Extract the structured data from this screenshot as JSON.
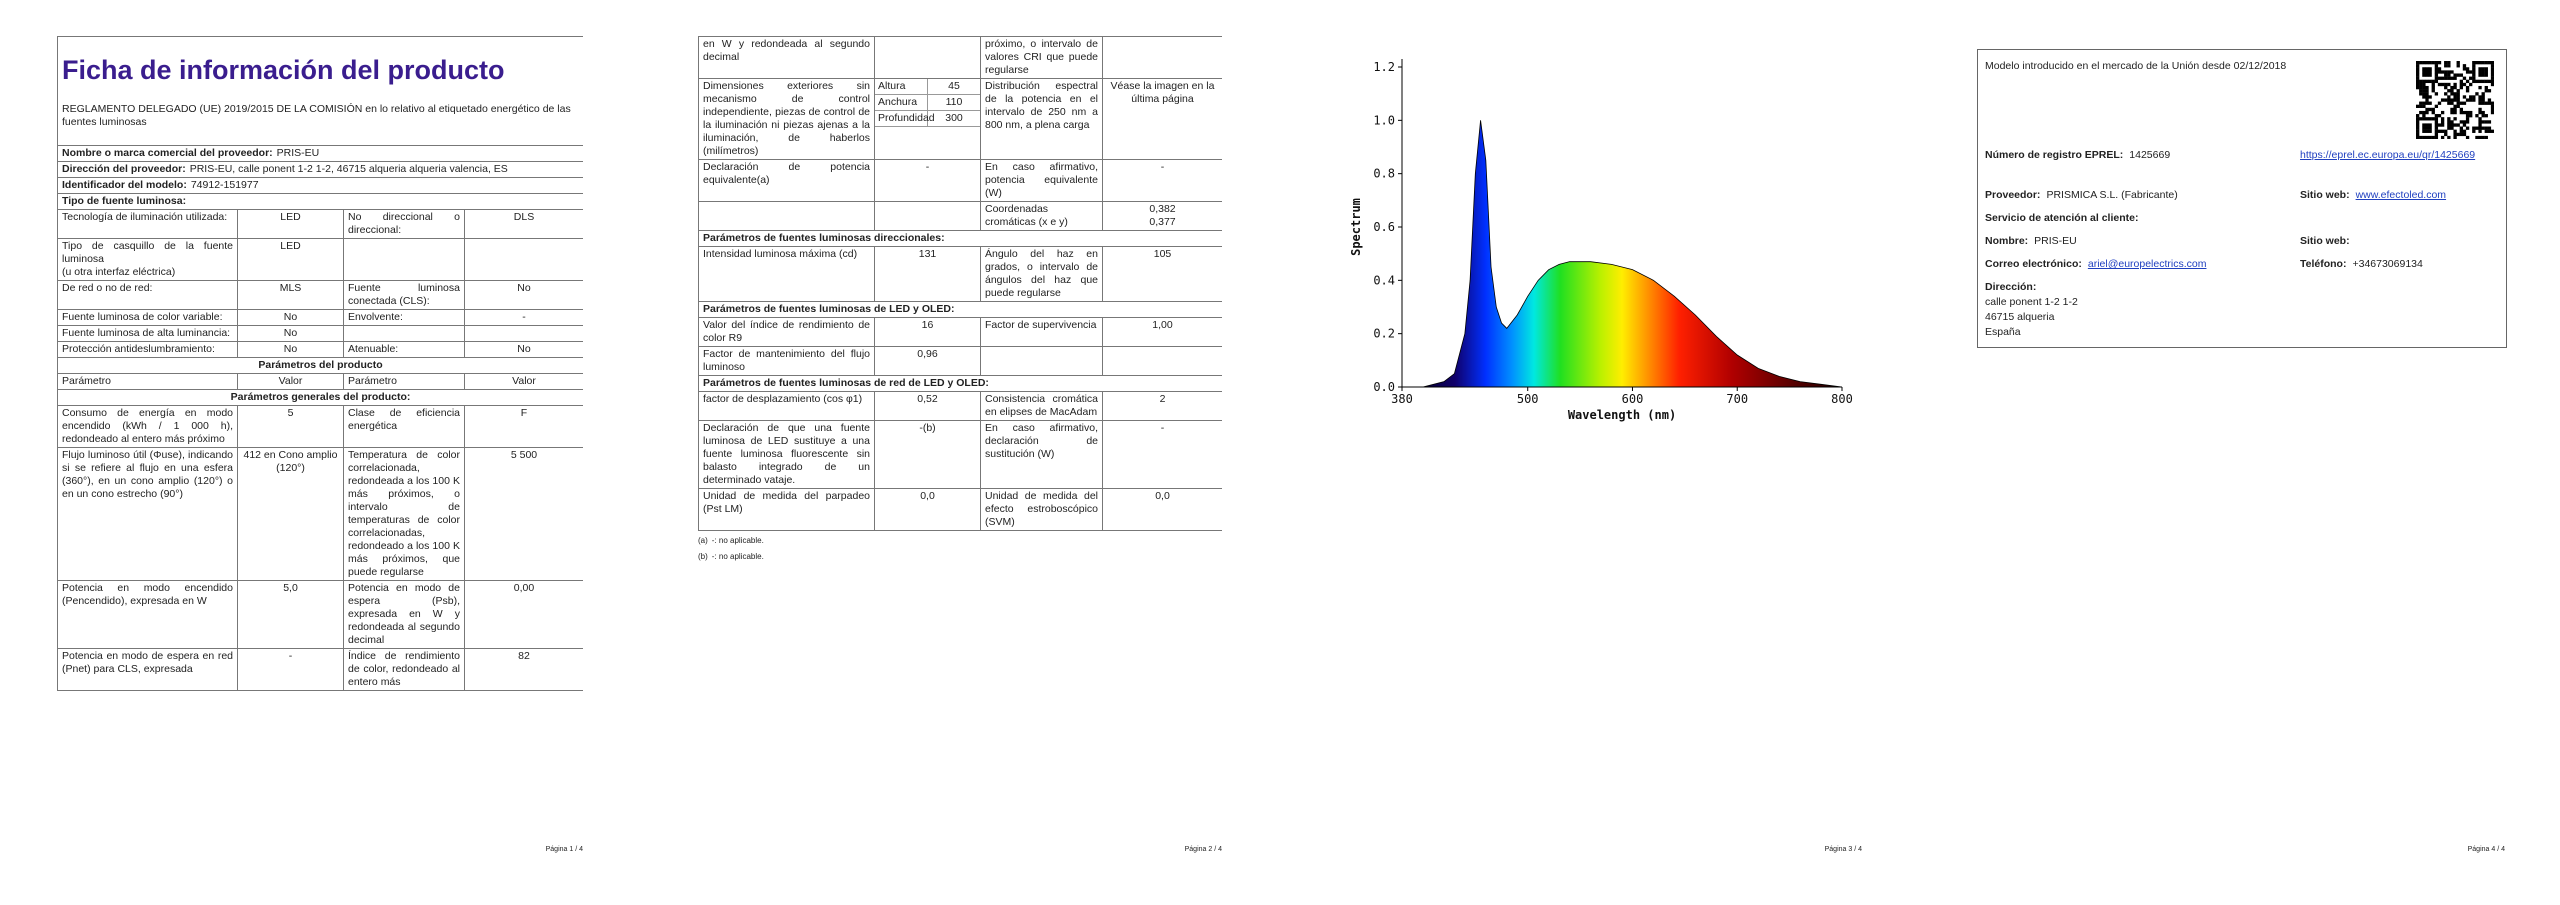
{
  "page1": {
    "title": "Ficha de información del producto",
    "regulation": "REGLAMENTO DELEGADO (UE) 2019/2015 DE LA COMISIÓN en lo relativo al etiquetado energético de las fuentes luminosas",
    "info": [
      [
        "Nombre o marca comercial del proveedor:",
        "PRIS-EU"
      ],
      [
        "Dirección del proveedor:",
        "PRIS-EU, calle ponent 1-2 1-2, 46715 alqueria alqueria valencia, ES"
      ],
      [
        "Identificador del modelo:",
        "74912-151977"
      ],
      [
        "Tipo de fuente luminosa:"
      ]
    ],
    "rows": [
      [
        "Tecnología de iluminación utilizada:",
        "LED",
        "No direccional o direccional:",
        "DLS"
      ],
      [
        "Tipo de casquillo de la fuente luminosa\n(u otra interfaz eléctrica)",
        "LED"
      ],
      [
        "De red o no de red:",
        "MLS",
        "Fuente luminosa conectada (CLS):",
        "No"
      ],
      [
        "Fuente luminosa de color variable:",
        "No",
        "Envolvente:",
        "-"
      ],
      [
        "Fuente luminosa de alta luminancia:",
        "No"
      ],
      [
        "Protección antideslumbramiento:",
        "No",
        "Atenuable:",
        "No"
      ],
      [
        "Parámetros del producto"
      ],
      [
        "Parámetro",
        "Valor",
        "Parámetro",
        "Valor"
      ],
      [
        "Parámetros generales del producto:"
      ],
      [
        "Consumo de energía en modo encendido (kWh / 1 000 h), redondeado al entero más próximo",
        "5",
        "Clase de eficiencia energética",
        "F"
      ],
      [
        "Flujo luminoso útil (Φuse), indicando si se refiere al flujo en una esfera (360°), en un cono amplio (120°) o en un cono estrecho (90°)",
        "412 en Cono amplio (120°)",
        "Temperatura de color correlacionada, redondeada a los 100 K más próximos, o intervalo de temperaturas de color correlacionadas, redondeado a los 100 K más próximos, que puede regularse",
        "5 500"
      ],
      [
        "Potencia en modo encendido (Pencendido), expresada en W",
        "5,0",
        "Potencia en modo de espera (Psb), expresada en W y redondeada al segundo decimal",
        "0,00"
      ],
      [
        "Potencia en modo de espera en red (Pnet) para CLS, expresada",
        "-",
        "Índice de rendimiento de color, redondeado al entero más",
        "82"
      ]
    ]
  },
  "page2": {
    "rows": [
      [
        "en W y redondeada al segundo decimal",
        null,
        "próximo, o intervalo de valores CRI que puede regularse"
      ],
      [
        "Dimensiones exteriores sin mecanismo de control independiente, piezas de control de la iluminación ni piezas ajenas a la iluminación, de haberlos (milímetros)",
        [
          [
            "Altura",
            "45"
          ],
          [
            "Anchura",
            "110"
          ],
          [
            "Profundidad",
            "300"
          ]
        ],
        "Distribución espectral de la potencia en el intervalo de 250 nm a 800 nm, a plena carga",
        "Véase la imagen en la última página"
      ],
      [
        "Declaración de potencia equivalente(a)",
        "-",
        "En caso afirmativo, potencia equivalente (W)",
        "-"
      ],
      [
        null,
        null,
        "Coordenadas cromáticas (x e y)",
        [
          "0,382",
          "0,377"
        ]
      ],
      [
        "Parámetros de fuentes luminosas direccionales:"
      ],
      [
        "Intensidad luminosa máxima (cd)",
        "131",
        "Ángulo del haz en grados, o intervalo de ángulos del haz que puede regularse",
        "105"
      ],
      [
        "Parámetros de fuentes luminosas de LED y OLED:"
      ],
      [
        "Valor del índice de rendimiento de color R9",
        "16",
        "Factor de supervivencia",
        "1,00"
      ],
      [
        "Factor de mantenimiento del flujo luminoso",
        "0,96"
      ],
      [
        "Parámetros de fuentes luminosas de red de LED y OLED:"
      ],
      [
        "factor de desplazamiento (cos φ1)",
        "0,52",
        "Consistencia cromática en elipses de MacAdam",
        "2"
      ],
      [
        "Declaración de que una fuente luminosa de LED sustituye a una fuente luminosa fluorescente sin balasto integrado de un determinado vataje.",
        "-(b)",
        "En caso afirmativo, declaración de sustitución (W)",
        "-"
      ],
      [
        "Unidad de medida del parpadeo (Pst LM)",
        "0,0",
        "Unidad de medida del efecto estroboscópico (SVM)",
        "0,0"
      ]
    ],
    "footnotes": [
      [
        "(a)",
        "-: no aplicable."
      ],
      [
        "(b)",
        "-: no aplicable."
      ]
    ]
  },
  "chart_data": {
    "type": "area",
    "x_label": "Wavelength (nm)",
    "y_label": "Spectrum",
    "x": [
      380,
      400,
      420,
      430,
      440,
      445,
      450,
      455,
      460,
      465,
      470,
      475,
      480,
      490,
      500,
      510,
      520,
      530,
      540,
      560,
      580,
      600,
      620,
      640,
      660,
      680,
      700,
      720,
      740,
      760,
      780,
      800
    ],
    "values": [
      0.0,
      0.0,
      0.02,
      0.05,
      0.2,
      0.4,
      0.8,
      1.0,
      0.85,
      0.45,
      0.3,
      0.24,
      0.22,
      0.27,
      0.34,
      0.4,
      0.44,
      0.46,
      0.47,
      0.47,
      0.46,
      0.44,
      0.4,
      0.34,
      0.27,
      0.19,
      0.12,
      0.07,
      0.04,
      0.02,
      0.01,
      0.0
    ],
    "xlim": [
      380,
      800
    ],
    "xticks": [
      380,
      500,
      600,
      700,
      800
    ],
    "ylim": [
      0,
      1.2
    ],
    "yticks": [
      {
        "value": 0,
        "label": "0.0"
      },
      0.2,
      0.4,
      0.6,
      0.8,
      {
        "value": 1,
        "label": "1.0"
      },
      1.2
    ]
  },
  "page4": {
    "intro": "Modelo introducido en el mercado de la Unión desde 02/12/2018",
    "eprel": {
      "label": "Número de registro EPREL:",
      "value": "1425669",
      "link": "https://eprel.ec.europa.eu/qr/1425669"
    },
    "supplier": {
      "label": "Proveedor:",
      "value": "PRISMICA S.L. (Fabricante)"
    },
    "website": {
      "label": "Sitio web:",
      "value": "www.efectoled.com"
    },
    "service": "Servicio de atención al cliente:",
    "name": {
      "label": "Nombre:",
      "value": "PRIS-EU"
    },
    "service_website": {
      "label": "Sitio web:"
    },
    "email": {
      "label": "Correo electrónico:",
      "value": "ariel@europelectrics.com"
    },
    "phone": {
      "label": "Teléfono:",
      "value": "+34673069134"
    },
    "address": {
      "label": "Dirección:",
      "lines": [
        "calle ponent 1-2 1-2",
        "46715 alqueria",
        "España"
      ]
    }
  },
  "page_numbers": [
    "Página 1 / 4",
    "Página 2 / 4",
    "Página 3 / 4",
    "Página 4 / 4"
  ]
}
